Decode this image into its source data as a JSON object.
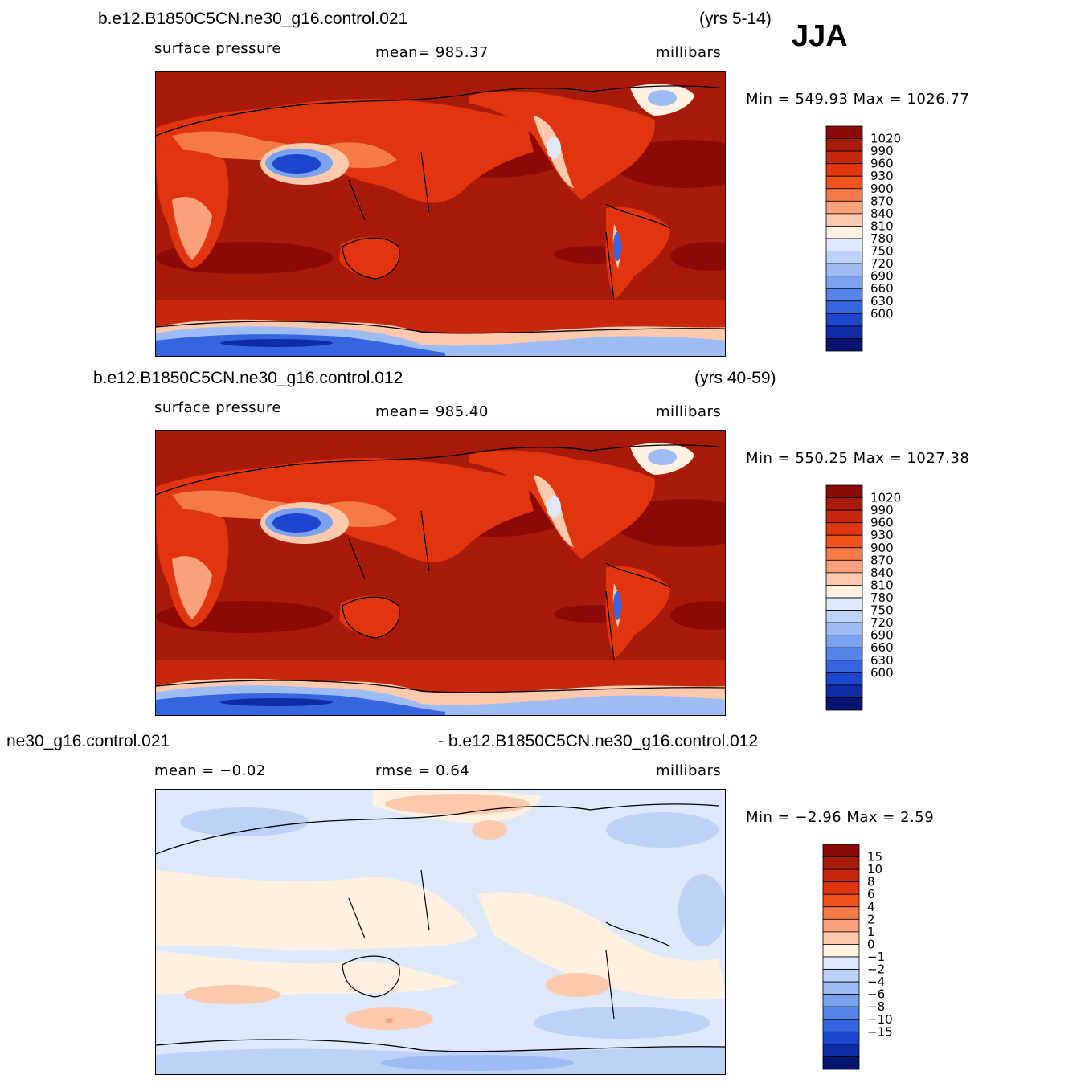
{
  "season": "JJA",
  "panels": [
    {
      "case": "b.e12.B1850C5CN.ne30_g16.control.021",
      "years": "(yrs 5-14)",
      "variable": "surface pressure",
      "stat": "mean=  985.37",
      "units": "millibars",
      "minmax": "Min  =  549.93  Max  =  1026.77",
      "type": "abs"
    },
    {
      "case": "b.e12.B1850C5CN.ne30_g16.control.012",
      "years": "(yrs 40-59)",
      "variable": "surface pressure",
      "stat": "mean=  985.40",
      "units": "millibars",
      "minmax": "Min  =  550.25  Max  =  1027.38",
      "type": "abs"
    },
    {
      "case": "ne30_g16.control.021",
      "years": "- b.e12.B1850C5CN.ne30_g16.control.012",
      "variable": "mean  =    −0.02",
      "stat": "rmse  =      0.64",
      "units": "millibars",
      "minmax": "Min  =    −2.96  Max  =      2.59",
      "type": "diff"
    }
  ],
  "colorbars": {
    "abs": {
      "labels": [
        "1020",
        "990",
        "960",
        "930",
        "900",
        "870",
        "840",
        "810",
        "780",
        "750",
        "720",
        "690",
        "660",
        "630",
        "600"
      ],
      "colors": [
        "#8c0a06",
        "#a81a0a",
        "#c7270c",
        "#e0350f",
        "#f0541c",
        "#f57a45",
        "#f9a17a",
        "#fcc9ad",
        "#fff0e0",
        "#dde9fa",
        "#bcd2f7",
        "#9dbcf3",
        "#7aa2ee",
        "#5684e8",
        "#3565df",
        "#1c46ce",
        "#0e2ca6",
        "#061474"
      ]
    },
    "diff": {
      "labels": [
        "15",
        "10",
        "8",
        "6",
        "4",
        "2",
        "1",
        "0",
        "−1",
        "−2",
        "−4",
        "−6",
        "−8",
        "−10",
        "−15"
      ],
      "colors": [
        "#8c0a06",
        "#a81a0a",
        "#c7270c",
        "#e0350f",
        "#f0541c",
        "#f57a45",
        "#f9a17a",
        "#fcc9ad",
        "#fff0e0",
        "#dde9fa",
        "#bcd2f7",
        "#9dbcf3",
        "#7aa2ee",
        "#5684e8",
        "#3565df",
        "#1c46ce",
        "#0e2ca6",
        "#061474"
      ]
    }
  }
}
